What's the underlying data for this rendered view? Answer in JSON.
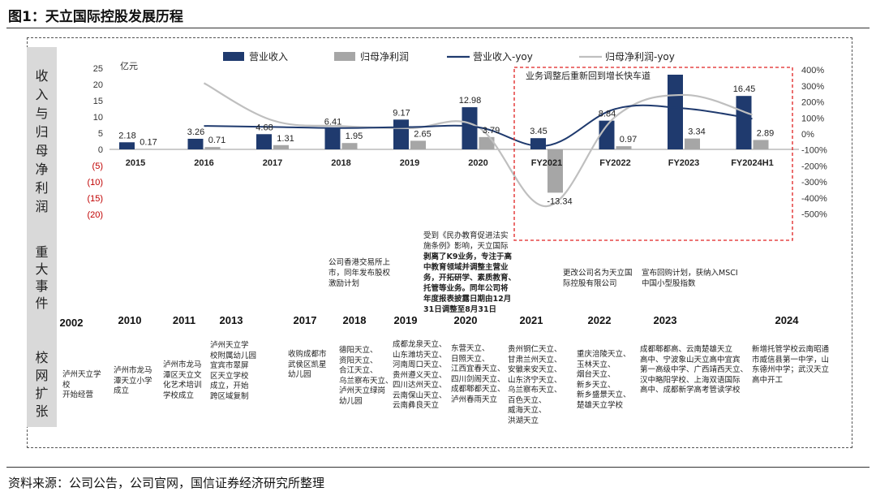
{
  "figure_title": "图1：天立国际控股发展历程",
  "source": "资料来源：公司公告，公司官网，国信证券经济研究所整理",
  "side_labels": {
    "revenue_profit": [
      "收",
      "入",
      "与",
      "归",
      "母",
      "净",
      "利",
      "润"
    ],
    "events": [
      "重",
      "大",
      "事",
      "件"
    ],
    "campus": [
      "校",
      "网",
      "扩",
      "张"
    ]
  },
  "chart_data": {
    "type": "bar",
    "unit_label": "亿元",
    "categories": [
      "2015",
      "2016",
      "2017",
      "2018",
      "2019",
      "2020",
      "FY2021",
      "FY2022",
      "FY2023",
      "FY2024H1"
    ],
    "series": [
      {
        "name": "营业收入",
        "kind": "bar",
        "color": "#1f3a6e",
        "values": [
          2.18,
          3.26,
          4.68,
          6.41,
          9.17,
          12.98,
          3.45,
          8.84,
          23.0,
          16.45
        ],
        "labels": [
          "2.18",
          "3.26",
          "4.68",
          "6.41",
          "9.17",
          "12.98",
          "3.45",
          "8.84",
          "",
          "16.45"
        ]
      },
      {
        "name": "归母净利润",
        "kind": "bar",
        "color": "#a6a6a6",
        "values": [
          0.17,
          0.71,
          1.31,
          1.95,
          2.65,
          3.79,
          -13.34,
          0.97,
          3.34,
          2.89
        ],
        "labels": [
          "0.17",
          "0.71",
          "1.31",
          "1.95",
          "2.65",
          "3.79",
          "-13.34",
          "0.97",
          "3.34",
          "2.89"
        ]
      },
      {
        "name": "营业收入-yoy",
        "kind": "line",
        "axis": "right",
        "color": "#1f3a6e",
        "values": [
          null,
          50,
          44,
          37,
          43,
          42,
          -73,
          156,
          160,
          95
        ]
      },
      {
        "name": "归母净利润-yoy",
        "kind": "line",
        "axis": "right",
        "color": "#bfbfbf",
        "values": [
          null,
          318,
          85,
          49,
          36,
          43,
          -452,
          107,
          244,
          120
        ]
      }
    ],
    "y_left": {
      "ticks": [
        "25",
        "20",
        "15",
        "10",
        "5",
        "0",
        "(5)",
        "(10)",
        "(15)",
        "(20)"
      ],
      "values": [
        25,
        20,
        15,
        10,
        5,
        0,
        -5,
        -10,
        -15,
        -20
      ],
      "ylim": [
        -20,
        25
      ]
    },
    "y_right": {
      "ticks": [
        "400%",
        "300%",
        "200%",
        "100%",
        "0%",
        "-100%",
        "-200%",
        "-300%",
        "-400%",
        "-500%"
      ],
      "values": [
        400,
        300,
        200,
        100,
        0,
        -100,
        -200,
        -300,
        -400,
        -500
      ],
      "ylim": [
        -500,
        400
      ]
    },
    "highlight_box": {
      "label": "业务调整后重新回到增长快车道",
      "from": "FY2021",
      "to": "FY2024H1"
    },
    "legend": {
      "placement": "top"
    }
  },
  "events_row": {
    "items": [
      {
        "id": "ev-2018",
        "lines": [
          "公司香港交易所上",
          "市，同年发布股权",
          "激励计划"
        ]
      },
      {
        "id": "ev-2020",
        "lines": [
          "受到《民办教育促进法实",
          "施条例》影响，天立国际"
        ],
        "bold_lines": [
          "剥离了K9业务，专注于高",
          "中教育领域并调整主营业",
          "务，开拓研学、素质教育、",
          "托管等业务。同年公司将",
          "年度报表披露日期由12月",
          "31日调整至8月31日"
        ]
      },
      {
        "id": "ev-2022",
        "lines": [
          "更改公司名为天立国",
          "际控股有限公司"
        ]
      },
      {
        "id": "ev-2023",
        "lines": [
          "宣布回购计划，获纳入MSCI",
          "中国小型股指数"
        ]
      }
    ]
  },
  "timeline_years": [
    "2002",
    "2010",
    "2011",
    "2013",
    "2017",
    "2018",
    "2019",
    "2020",
    "2021",
    "2022",
    "2023",
    "2024"
  ],
  "campus_row": {
    "items": [
      {
        "year": "2002",
        "lines": [
          "泸州天立学",
          "校",
          "开始经营"
        ]
      },
      {
        "year": "2010",
        "lines": [
          "泸州市龙马",
          "潭天立小学",
          "成立"
        ]
      },
      {
        "year": "2011",
        "lines": [
          "泸州市龙马",
          "潭区天立文",
          "化艺术培训",
          "学校成立"
        ]
      },
      {
        "year": "2013",
        "lines": [
          "泸州天立学",
          "校附属幼儿园",
          "宜宾市翠屏",
          "区天立学校",
          "成立，开始",
          "跨区域复制"
        ]
      },
      {
        "year": "2017",
        "lines": [
          "收购成都市",
          "武侯区凯星",
          "幼儿园"
        ]
      },
      {
        "year": "2018",
        "lines": [
          "德阳天立、",
          "资阳天立、",
          "合江天立、",
          "乌兰察布天立、",
          "泸州天立绿岗",
          "幼儿园"
        ]
      },
      {
        "year": "2019",
        "lines": [
          "成都龙泉天立、",
          "山东潍坊天立、",
          "河南周口天立、",
          "贵州遵义天立、",
          "四川达州天立、",
          "云南保山天立、",
          "云南彝良天立"
        ]
      },
      {
        "year": "2020",
        "lines": [
          "东营天立、",
          "日照天立、",
          "江西宜春天立、",
          "四川剑阁天立、",
          "成都郫都天立、",
          "泸州春雨天立"
        ]
      },
      {
        "year": "2021",
        "lines": [
          "贵州铜仁天立、",
          "甘肃兰州天立、",
          "安徽来安天立、",
          "山东济宁天立、",
          "乌兰察布天立、",
          "百色天立、",
          "威海天立、",
          "洪湖天立"
        ]
      },
      {
        "year": "2022",
        "lines": [
          "重庆涪陵天立、",
          "玉林天立、",
          "烟台天立、",
          "新乡天立、",
          "新乡盛景天立、",
          "楚雄天立学校"
        ]
      },
      {
        "year": "2023",
        "lines": [
          "成都郫都高、云南楚雄天立",
          "高中、宁波象山天立高中宜宾",
          "第一高级中学、广西靖西天立、",
          "汉中略阳学校、上海双语国际",
          "高中、成都新学高考管读学校"
        ]
      },
      {
        "year": "2024",
        "lines": [
          "新增托管学校云南昭通",
          "市威信县第一中学，山",
          "东德州中学；武汉天立",
          "高中开工"
        ]
      }
    ]
  }
}
